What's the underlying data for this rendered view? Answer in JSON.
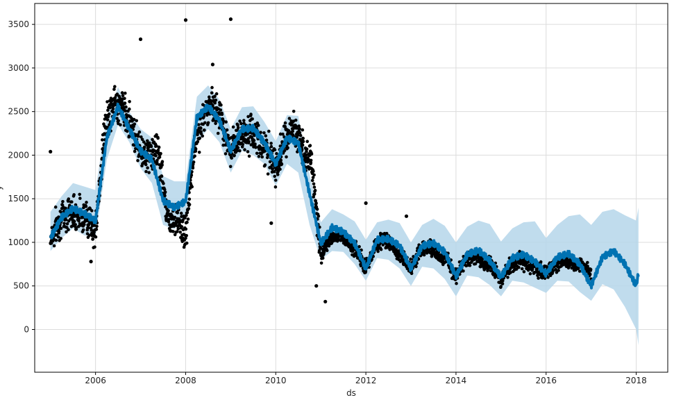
{
  "chart_data": {
    "type": "scatter",
    "xlabel": "ds",
    "ylabel": "y",
    "x_tick_labels": [
      "2006",
      "2008",
      "2010",
      "2012",
      "2014",
      "2016",
      "2018"
    ],
    "y_tick_labels": [
      "0",
      "500",
      "1000",
      "1500",
      "2000",
      "2500",
      "3000",
      "3500"
    ],
    "x_ticks": [
      2006,
      2008,
      2010,
      2012,
      2014,
      2016,
      2018
    ],
    "y_ticks": [
      0,
      500,
      1000,
      1500,
      2000,
      2500,
      3000,
      3500
    ],
    "xlim": [
      2004.65,
      2018.7
    ],
    "ylim": [
      -490,
      3740
    ],
    "grid": true,
    "colors": {
      "observed": "#000000",
      "forecast": "#0072b2",
      "uncertainty": "#b5d6ea",
      "grid": "#dcdcdc",
      "frame": "#000000"
    },
    "series": [
      {
        "kind": "uncertainty_band",
        "x": [
          2005.0,
          2005.25,
          2005.5,
          2005.75,
          2006.0,
          2006.25,
          2006.5,
          2006.75,
          2007.0,
          2007.25,
          2007.5,
          2007.75,
          2008.0,
          2008.25,
          2008.5,
          2008.75,
          2009.0,
          2009.25,
          2009.5,
          2009.75,
          2010.0,
          2010.25,
          2010.5,
          2010.75,
          2011.0,
          2011.25,
          2011.5,
          2011.75,
          2012.0,
          2012.25,
          2012.5,
          2012.75,
          2013.0,
          2013.25,
          2013.5,
          2013.75,
          2014.0,
          2014.25,
          2014.5,
          2014.75,
          2015.0,
          2015.25,
          2015.5,
          2015.75,
          2016.0,
          2016.25,
          2016.5,
          2016.75,
          2017.0,
          2017.25,
          2017.5,
          2017.75,
          2018.0,
          2018.05
        ],
        "lower": [
          900,
          1050,
          1160,
          1080,
          1060,
          1950,
          2350,
          2150,
          1850,
          1680,
          1200,
          1150,
          1300,
          2150,
          2300,
          2150,
          1800,
          2050,
          2000,
          1900,
          1650,
          1900,
          1800,
          1200,
          800,
          900,
          890,
          750,
          560,
          820,
          800,
          700,
          500,
          720,
          700,
          580,
          380,
          620,
          600,
          510,
          380,
          560,
          540,
          480,
          420,
          560,
          550,
          430,
          330,
          520,
          460,
          260,
          0,
          -180
        ],
        "upper": [
          1350,
          1530,
          1680,
          1640,
          1600,
          2440,
          2780,
          2500,
          2300,
          2200,
          1760,
          1700,
          1700,
          2670,
          2800,
          2640,
          2300,
          2550,
          2560,
          2380,
          2160,
          2460,
          2450,
          1780,
          1230,
          1380,
          1320,
          1240,
          1030,
          1230,
          1260,
          1220,
          1000,
          1200,
          1270,
          1190,
          1000,
          1180,
          1250,
          1210,
          1010,
          1160,
          1230,
          1240,
          1050,
          1200,
          1300,
          1320,
          1200,
          1350,
          1380,
          1310,
          1250,
          1400
        ]
      },
      {
        "kind": "forecast",
        "x": [
          2005.0,
          2005.25,
          2005.5,
          2005.75,
          2006.0,
          2006.25,
          2006.5,
          2006.75,
          2007.0,
          2007.25,
          2007.5,
          2007.75,
          2008.0,
          2008.25,
          2008.5,
          2008.75,
          2009.0,
          2009.25,
          2009.5,
          2009.75,
          2010.0,
          2010.25,
          2010.5,
          2010.75,
          2011.0,
          2011.25,
          2011.5,
          2011.75,
          2012.0,
          2012.25,
          2012.5,
          2012.75,
          2013.0,
          2013.25,
          2013.5,
          2013.75,
          2014.0,
          2014.25,
          2014.5,
          2014.75,
          2015.0,
          2015.25,
          2015.5,
          2015.75,
          2016.0,
          2016.25,
          2016.5,
          2016.75,
          2017.0,
          2017.25,
          2017.5,
          2017.75,
          2018.0,
          2018.05
        ],
        "values": [
          1050,
          1290,
          1390,
          1330,
          1250,
          2200,
          2560,
          2300,
          2050,
          1950,
          1480,
          1400,
          1470,
          2430,
          2560,
          2400,
          2050,
          2300,
          2310,
          2140,
          1900,
          2200,
          2140,
          1560,
          990,
          1170,
          1120,
          990,
          700,
          1030,
          1040,
          960,
          700,
          960,
          990,
          890,
          610,
          860,
          910,
          790,
          600,
          820,
          860,
          780,
          640,
          830,
          870,
          750,
          500,
          830,
          900,
          750,
          500,
          640
        ]
      },
      {
        "kind": "observed",
        "x": [
          2005.0,
          2005.2,
          2005.4,
          2005.6,
          2005.8,
          2006.0,
          2006.2,
          2006.4,
          2006.6,
          2006.8,
          2007.0,
          2007.2,
          2007.4,
          2007.6,
          2007.8,
          2008.0,
          2008.2,
          2008.4,
          2008.6,
          2008.8,
          2009.0,
          2009.2,
          2009.4,
          2009.6,
          2009.8,
          2010.0,
          2010.2,
          2010.4,
          2010.6,
          2010.8,
          2011.0,
          2011.2,
          2011.4,
          2011.6,
          2011.8,
          2012.0,
          2012.2,
          2012.4,
          2012.6,
          2012.8,
          2013.0,
          2013.2,
          2013.4,
          2013.6,
          2013.8,
          2014.0,
          2014.2,
          2014.4,
          2014.6,
          2014.8,
          2015.0,
          2015.2,
          2015.4,
          2015.6,
          2015.8,
          2016.0,
          2016.2,
          2016.4,
          2016.6,
          2016.8,
          2017.0
        ],
        "values": [
          1050,
          1250,
          1350,
          1330,
          1300,
          1100,
          2300,
          2600,
          2550,
          2350,
          2050,
          2000,
          2050,
          1300,
          1250,
          1100,
          2100,
          2450,
          2600,
          2400,
          2000,
          2250,
          2250,
          2200,
          2050,
          1850,
          2150,
          2300,
          2100,
          1900,
          850,
          1050,
          1100,
          1000,
          900,
          700,
          950,
          1050,
          950,
          850,
          700,
          900,
          950,
          850,
          800,
          600,
          800,
          850,
          780,
          720,
          550,
          740,
          800,
          740,
          700,
          650,
          740,
          800,
          760,
          720,
          650
        ]
      },
      {
        "kind": "outliers",
        "x": [
          2005.0,
          2007.0,
          2008.0,
          2008.6,
          2009.0,
          2011.1,
          2012.0,
          2012.9,
          2010.9,
          2005.9,
          2009.9
        ],
        "values": [
          2040,
          3330,
          3550,
          3040,
          3560,
          320,
          1450,
          1300,
          500,
          780,
          1220
        ]
      }
    ]
  }
}
